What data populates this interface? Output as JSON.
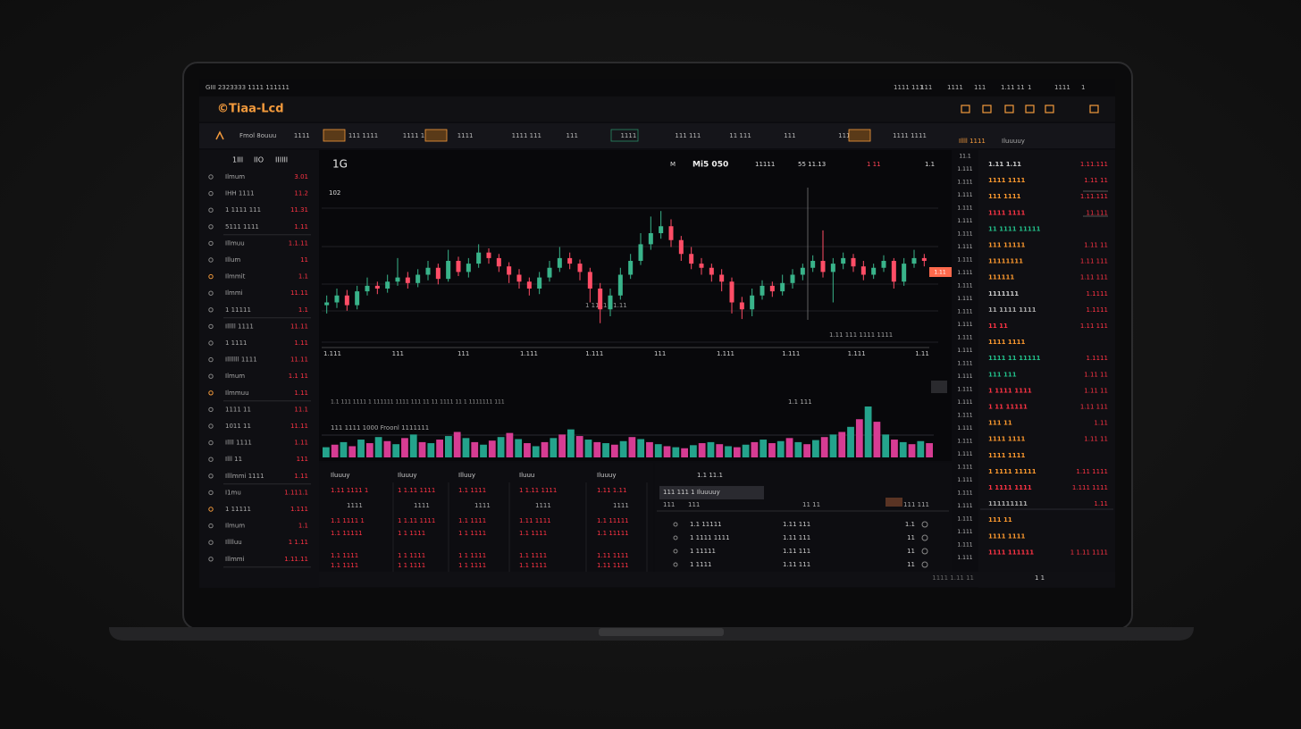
{
  "header": {
    "menu_left": "GIII 2323333 1111 111111",
    "menu_right": [
      "1111 111",
      "111",
      "1111",
      "111",
      "1.11 11",
      "1",
      "1111",
      "1"
    ],
    "logo": "©Tiaa-Lcd"
  },
  "toolbar": [
    "Fmol 8ouuu",
    "1111",
    "111 1111",
    "1111 11",
    "1111",
    "1111 111",
    "111",
    "1111",
    "111 111",
    "11 111",
    "111",
    "1111",
    "1111 1111"
  ],
  "left_panel": {
    "tabs": [
      "1III",
      "IIO",
      "IIIIII"
    ],
    "rows": [
      {
        "label": "Ilmum",
        "value": "3.01"
      },
      {
        "label": "IHH 1111",
        "value": "11.2"
      },
      {
        "label": "1 1111 111",
        "value": "11.31"
      },
      {
        "label": "5111 1111",
        "value": "1.11"
      },
      {
        "label": "Illmuu",
        "value": "1.1.11"
      },
      {
        "label": "Illum",
        "value": "11"
      },
      {
        "label": "Ilmmit",
        "value": "1.1"
      },
      {
        "label": "Ilmmi",
        "value": "11.11"
      },
      {
        "label": "1 11111",
        "value": "1.1"
      },
      {
        "label": "Illlll 1111",
        "value": "11.11"
      },
      {
        "label": "1 1111",
        "value": "1.11"
      },
      {
        "label": "Illlllll 1111",
        "value": "11.11"
      },
      {
        "label": "Ilmum",
        "value": "1.1 11"
      },
      {
        "label": "Ilmmuu",
        "value": "1.11"
      },
      {
        "label": "1111 11",
        "value": "11.1"
      },
      {
        "label": "1011 11",
        "value": "11.11"
      },
      {
        "label": "Illll 1111",
        "value": "1.11"
      },
      {
        "label": "Illl 11",
        "value": "111"
      },
      {
        "label": "Illlmmi 1111",
        "value": "1.11"
      },
      {
        "label": "I1mu",
        "value": "1.111.1"
      },
      {
        "label": "1 11111",
        "value": "1.111"
      },
      {
        "label": "Ilmum",
        "value": "1.1"
      },
      {
        "label": "Illlluu",
        "value": "1 1.11"
      },
      {
        "label": "Illmmi",
        "value": "1.11.11"
      }
    ]
  },
  "chart": {
    "timeframe": "1G",
    "symbol": "Mi5 050",
    "header_items": [
      "M",
      "11111",
      "55 11.13",
      "1 11",
      "1.1"
    ],
    "price_label": "102",
    "current_price": "1.11",
    "candle_note": "1 1111 11.11",
    "range_note": "1.11 111 1111 1111",
    "colors": {
      "up": "#39b38a",
      "down": "#ff4d66"
    },
    "price_range": [
      0,
      100
    ],
    "open": [
      28,
      30,
      35,
      28,
      38,
      42,
      40,
      45,
      48,
      44,
      50,
      55,
      47,
      60,
      52,
      58,
      66,
      62,
      56,
      50,
      45,
      40,
      48,
      55,
      62,
      58,
      52,
      40,
      25,
      35,
      50,
      60,
      72,
      80,
      85,
      75,
      65,
      58,
      55,
      50,
      45,
      30,
      25,
      35,
      42,
      38,
      44,
      50,
      55,
      60,
      52,
      58,
      62,
      56,
      50,
      55,
      60,
      45,
      58,
      62
    ],
    "high": [
      35,
      40,
      39,
      42,
      48,
      45,
      50,
      62,
      52,
      54,
      60,
      58,
      68,
      63,
      62,
      72,
      69,
      65,
      59,
      54,
      48,
      52,
      60,
      70,
      66,
      61,
      55,
      44,
      40,
      55,
      65,
      80,
      92,
      96,
      90,
      78,
      70,
      62,
      58,
      54,
      48,
      34,
      40,
      46,
      45,
      50,
      54,
      58,
      64,
      82,
      62,
      66,
      65,
      60,
      58,
      64,
      62,
      62,
      68,
      65
    ],
    "low": [
      22,
      26,
      24,
      25,
      35,
      36,
      37,
      42,
      40,
      41,
      46,
      43,
      45,
      49,
      48,
      55,
      58,
      52,
      44,
      40,
      35,
      36,
      45,
      52,
      54,
      46,
      30,
      15,
      20,
      32,
      47,
      57,
      68,
      76,
      70,
      60,
      54,
      50,
      45,
      38,
      22,
      18,
      20,
      32,
      34,
      35,
      40,
      46,
      52,
      48,
      30,
      54,
      52,
      46,
      47,
      52,
      40,
      42,
      55,
      56
    ],
    "close": [
      30,
      35,
      28,
      38,
      42,
      40,
      45,
      48,
      44,
      50,
      55,
      47,
      60,
      52,
      58,
      66,
      62,
      56,
      50,
      45,
      40,
      48,
      55,
      62,
      58,
      52,
      40,
      25,
      35,
      50,
      60,
      72,
      80,
      85,
      75,
      65,
      58,
      55,
      50,
      45,
      30,
      25,
      35,
      42,
      38,
      44,
      50,
      55,
      60,
      52,
      58,
      62,
      56,
      50,
      55,
      60,
      45,
      58,
      62,
      60
    ],
    "x_labels": [
      "1.111",
      "111",
      "111",
      "1.111",
      "1.111",
      "111",
      "1.111",
      "1.111",
      "1.111",
      "1.11"
    ],
    "price_axis": [
      "11.1",
      "1.111",
      "1.111",
      "1.111",
      "1.111",
      "1.111",
      "1.111",
      "1.111",
      "1.111",
      "1.111",
      "1.111",
      "1.111",
      "1.111",
      "1.111",
      "1.111",
      "1.111",
      "1.111",
      "1.111",
      "1.111",
      "1.111",
      "1.111",
      "1.111",
      "1.111",
      "1.111",
      "1.111",
      "1.111",
      "1.111",
      "1.111",
      "1.111",
      "1.111",
      "1.111",
      "1.111"
    ]
  },
  "volume": {
    "title": "1.1 111 1111 1 111111 1111 111 11 11 1111 11 1 1111111 111",
    "label": "111 1111 1000 Froonl 1111111",
    "note": "1.1 111",
    "colors": [
      "#24a38c",
      "#d63c93"
    ],
    "range": [
      0,
      100
    ],
    "values": [
      20,
      25,
      30,
      22,
      35,
      28,
      40,
      32,
      26,
      38,
      45,
      30,
      28,
      35,
      42,
      50,
      38,
      30,
      25,
      33,
      40,
      48,
      36,
      28,
      22,
      30,
      38,
      45,
      55,
      42,
      35,
      30,
      28,
      25,
      32,
      40,
      36,
      30,
      26,
      22,
      20,
      18,
      24,
      28,
      30,
      26,
      22,
      20,
      25,
      30,
      35,
      28,
      32,
      38,
      30,
      26,
      34,
      40,
      45,
      50,
      60,
      75,
      100,
      70,
      45,
      35,
      30,
      26,
      32,
      28
    ]
  },
  "positions": {
    "headers": [
      "Iluuuy",
      "Iluuuy",
      "Illuuy",
      "Iluuu",
      "Iluuuy"
    ],
    "rows": [
      [
        "1.11 1111 1",
        "1 1.11 1111",
        "1.1 1111",
        "1 1.11 1111",
        "1.11 1.11"
      ],
      [
        "1111",
        "1111",
        "1111",
        "1111",
        "1111"
      ],
      [
        "1.1 1111 1",
        "1 1.11 1111",
        "1.1 1111",
        "1.11 1111",
        "1.1 11111"
      ],
      [
        "1.1 11111",
        "1 1 1111",
        "1 1 1111",
        "1.1 1111",
        "1.1 11111"
      ],
      [
        "1.1 1111",
        "1 1 1111",
        "1 1 1111",
        "1.1 1111",
        "1.11 1111"
      ],
      [
        "1.1 1111",
        "1 1 1111",
        "1 1 1111",
        "1.1 1111",
        "1.11 1111"
      ]
    ]
  },
  "orders": {
    "title": "1.1 11.1",
    "tab": "111 111 1 Iluuuuy",
    "head": [
      "111",
      "111",
      "11 11",
      "111 111"
    ],
    "rows": [
      [
        "1.1 11111",
        "1.11 111",
        "1.1"
      ],
      [
        "1 1111 1111",
        "1.11 111",
        "11"
      ],
      [
        "1 11111",
        "1.11 111",
        "11"
      ],
      [
        "1 1111",
        "1.11 111",
        "11"
      ]
    ],
    "footer": "1111 1.11 11"
  },
  "order_book": {
    "header": [
      "Illll 1111",
      "Iluuuuy"
    ],
    "rows": [
      {
        "t": "1.11 1.11",
        "v": "1.11.111",
        "c": "#cccccc"
      },
      {
        "t": "1111 1111",
        "v": "1.11 11",
        "c": "#ff9a2e"
      },
      {
        "t": "111 1111",
        "v": "1.11.111",
        "c": "#ff9a2e"
      },
      {
        "t": "1111 1111",
        "v": "11.111",
        "c": "#ff3344"
      },
      {
        "t": "11 1111 11111",
        "v": "",
        "c": "#22c08a"
      },
      {
        "t": "111 11111",
        "v": "1.11 11",
        "c": "#ff9a2e"
      },
      {
        "t": "11111111",
        "v": "1.11 111",
        "c": "#ff9a2e"
      },
      {
        "t": "111111",
        "v": "1.11 111",
        "c": "#ff9a2e"
      },
      {
        "t": "1111111",
        "v": "1.1111",
        "c": "#cccccc"
      },
      {
        "t": "11 1111 1111",
        "v": "1.1111",
        "c": "#aaaaaa"
      },
      {
        "t": "11 11",
        "v": "1.11 111",
        "c": "#ff3344"
      },
      {
        "t": "1111 1111",
        "v": "",
        "c": "#ff9a2e"
      },
      {
        "t": "1111 11 11111",
        "v": "1.1111",
        "c": "#22c08a"
      },
      {
        "t": "111 111",
        "v": "1.11 11",
        "c": "#22c08a"
      },
      {
        "t": "1 1111 1111",
        "v": "1.11 11",
        "c": "#ff3344"
      },
      {
        "t": "1 11 11111",
        "v": "1.11 111",
        "c": "#ff3344"
      },
      {
        "t": "111 11",
        "v": "1.11",
        "c": "#ff9a2e"
      },
      {
        "t": "1111 1111",
        "v": "1.11 11",
        "c": "#ff9a2e"
      },
      {
        "t": "1111 1111",
        "v": "",
        "c": "#ff9a2e"
      },
      {
        "t": "1 1111 11111",
        "v": "1.11 1111",
        "c": "#ff9a2e"
      },
      {
        "t": "1 1111 1111",
        "v": "1.111 1111",
        "c": "#ff3344"
      },
      {
        "t": "111111111",
        "v": "1.11",
        "c": "#aaaaaa"
      },
      {
        "t": "111 11",
        "v": "",
        "c": "#ff9a2e"
      },
      {
        "t": "1111 1111",
        "v": "",
        "c": "#ff9a2e"
      },
      {
        "t": "1111 111111",
        "v": "1 1.11 1111",
        "c": "#ff3344"
      }
    ],
    "footer": "1 1"
  }
}
